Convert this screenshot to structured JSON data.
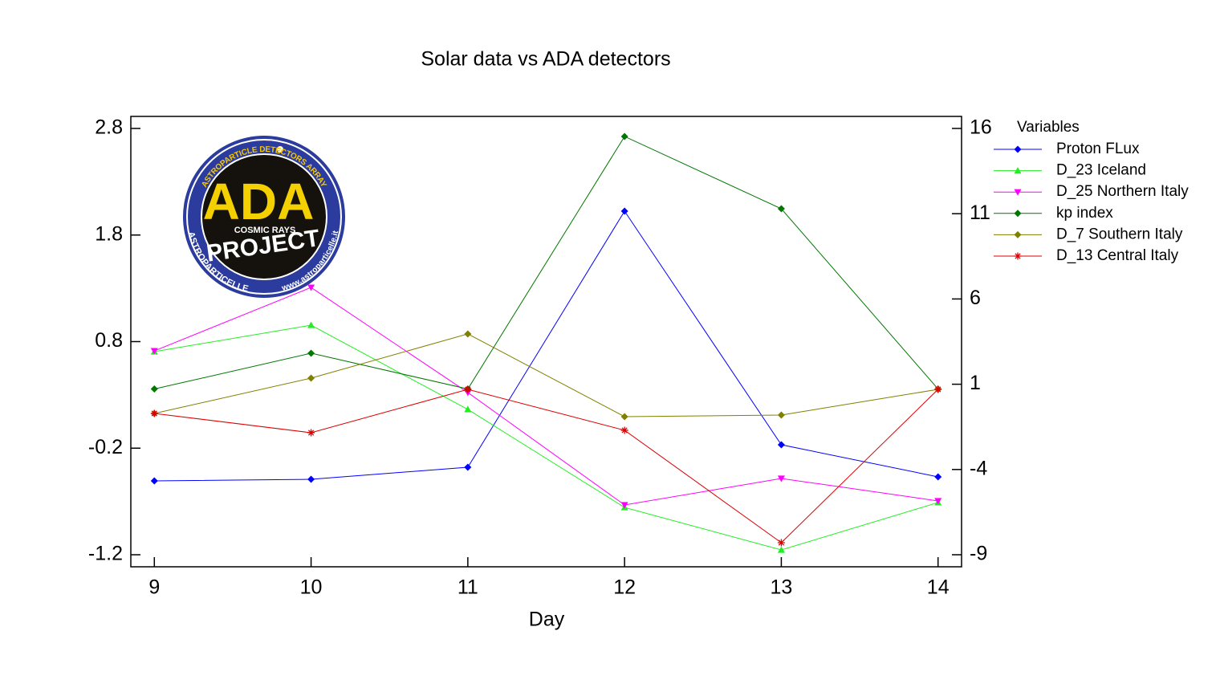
{
  "chart_data": {
    "type": "line",
    "title": "Solar data vs ADA detectors",
    "x_label": "Day",
    "x": [
      9,
      10,
      11,
      12,
      13,
      14
    ],
    "xlim": [
      8.85,
      14.15
    ],
    "xticks": [
      9,
      10,
      11,
      12,
      13,
      14
    ],
    "ylim": [
      -1.313,
      2.913
    ],
    "yticks": [
      -1.2,
      -0.2,
      0.8,
      1.8,
      2.8
    ],
    "y2lim": [
      -9.706,
      16.706
    ],
    "y2ticks": [
      -9,
      -4,
      1,
      6,
      11,
      16
    ],
    "legend_title": "Variables",
    "legend": "right",
    "series": [
      {
        "name": "Proton FLux",
        "color": "#0000ff",
        "marker": "diamond",
        "values": [
          -0.507,
          -0.492,
          -0.379,
          2.024,
          -0.168,
          -0.469
        ]
      },
      {
        "name": "D_23 Iceland",
        "color": "#22ee22",
        "marker": "triangle-up",
        "values": [
          0.706,
          0.954,
          0.164,
          -0.756,
          -1.155,
          -0.71
        ]
      },
      {
        "name": "D_25 Northern Italy",
        "color": "#ff00ff",
        "marker": "triangle-down",
        "values": [
          0.713,
          1.308,
          0.322,
          -0.733,
          -0.484,
          -0.695
        ]
      },
      {
        "name": "kp index",
        "color": "#007700",
        "marker": "diamond",
        "axis": "y2",
        "values": [
          0.72,
          2.82,
          0.72,
          15.53,
          11.29,
          0.72
        ]
      },
      {
        "name": "D_7 Southern Italy",
        "color": "#808000",
        "marker": "diamond",
        "values": [
          0.126,
          0.457,
          0.872,
          0.096,
          0.111,
          0.352
        ]
      },
      {
        "name": "D_13 Central Italy",
        "color": "#dd0000",
        "marker": "asterisk",
        "values": [
          0.126,
          -0.055,
          0.352,
          -0.032,
          -1.087,
          0.352
        ]
      }
    ]
  },
  "logo": {
    "ring_top": "ASTROPARTICLE DETECTORS ARRAY",
    "ring_left": "ASTROPARTICELLE",
    "ring_right": "www.astroparticelle.it",
    "name": "ADA",
    "subtitle": "COSMIC RAYS",
    "project": "PROJECT"
  }
}
